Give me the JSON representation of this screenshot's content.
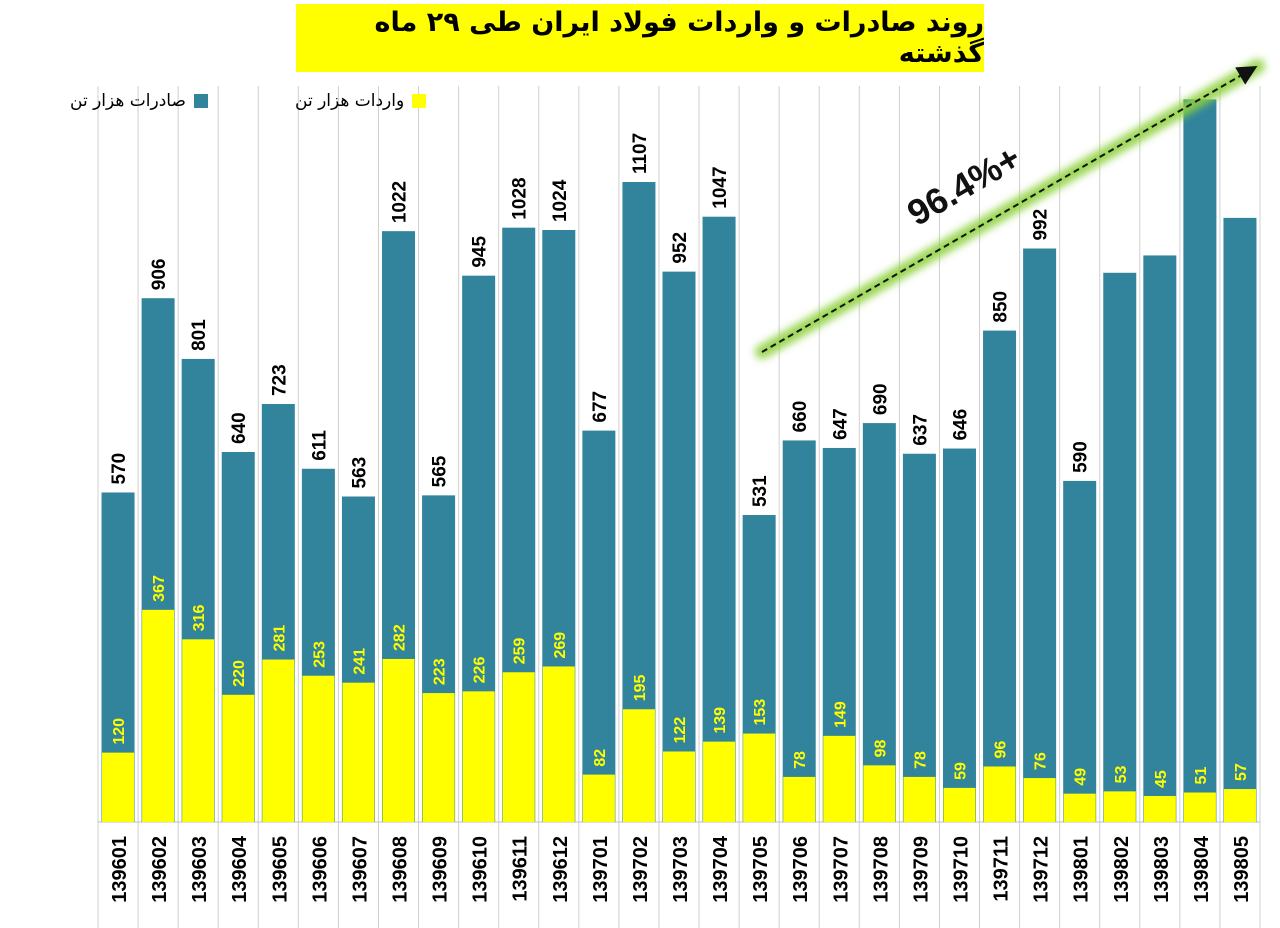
{
  "chart_data": {
    "type": "bar",
    "title": "روند صادرات و واردات فولاد ایران طی ۲۹ ماه گذشته",
    "categories": [
      "139601",
      "139602",
      "139603",
      "139604",
      "139605",
      "139606",
      "139607",
      "139608",
      "139609",
      "139610",
      "139611",
      "139612",
      "139701",
      "139702",
      "139703",
      "139704",
      "139705",
      "139706",
      "139707",
      "139708",
      "139709",
      "139710",
      "139711",
      "139712",
      "139801",
      "139802",
      "139803",
      "139804",
      "139805"
    ],
    "series": [
      {
        "name": "صادرات هزار تن",
        "color": "#31849b",
        "values": [
          570,
          906,
          801,
          640,
          723,
          611,
          563,
          1022,
          565,
          945,
          1028,
          1024,
          677,
          1107,
          952,
          1047,
          531,
          660,
          647,
          690,
          637,
          646,
          850,
          992,
          590,
          950,
          980,
          1250,
          1045
        ],
        "labels": [
          "570",
          "906",
          "801",
          "640",
          "723",
          "611",
          "563",
          "1022",
          "565",
          "945",
          "1028",
          "1024",
          "677",
          "1107",
          "952",
          "1047",
          "531",
          "660",
          "647",
          "690",
          "637",
          "646",
          "850",
          "992",
          "590",
          "",
          "",
          "",
          ""
        ]
      },
      {
        "name": "واردات هزار تن",
        "color": "#ffff00",
        "values": [
          120,
          367,
          316,
          220,
          281,
          253,
          241,
          282,
          223,
          226,
          259,
          269,
          82,
          195,
          122,
          139,
          153,
          78,
          149,
          98,
          78,
          59,
          96,
          76,
          49,
          53,
          45,
          51,
          57
        ],
        "labels": [
          "120",
          "367",
          "316",
          "220",
          "281",
          "253",
          "241",
          "282",
          "223",
          "226",
          "259",
          "269",
          "82",
          "195",
          "122",
          "139",
          "153",
          "78",
          "149",
          "98",
          "78",
          "59",
          "96",
          "76",
          "49",
          "53",
          "45",
          "51",
          "57"
        ]
      }
    ],
    "ylim": [
      0,
      1280
    ],
    "annotation": "96.4%+",
    "xlabel": "",
    "ylabel": ""
  },
  "colors": {
    "export": "#31849b",
    "import": "#ffff00",
    "trend_glow": "#8fd13f"
  }
}
